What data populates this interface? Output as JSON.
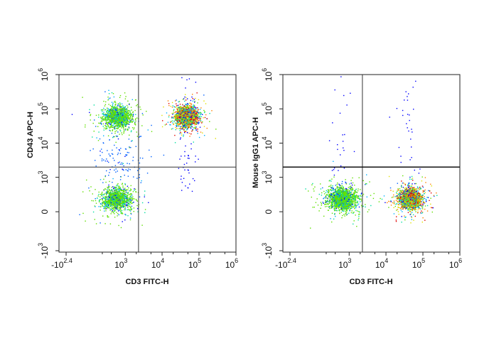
{
  "chart_data": [
    {
      "type": "scatter",
      "subtype": "flow-cytometry-density-dot-plot",
      "xlabel": "CD3 FITC-H",
      "ylabel": "CD43 APC-H",
      "x_scale": "biexponential",
      "y_scale": "biexponential",
      "x_ticks": [
        {
          "label": "-10",
          "exp": "2.4",
          "value": -251
        },
        {
          "label": "10",
          "exp": "3",
          "value": 1000
        },
        {
          "label": "10",
          "exp": "4",
          "value": 10000
        },
        {
          "label": "10",
          "exp": "5",
          "value": 100000
        },
        {
          "label": "10",
          "exp": "6",
          "value": 1000000
        }
      ],
      "y_ticks": [
        {
          "label": "-10",
          "exp": "3",
          "value": -1000
        },
        {
          "label": "0",
          "exp": "",
          "value": 0
        },
        {
          "label": "10",
          "exp": "3",
          "value": 1000
        },
        {
          "label": "10",
          "exp": "4",
          "value": 10000
        },
        {
          "label": "10",
          "exp": "5",
          "value": 100000
        },
        {
          "label": "10",
          "exp": "6",
          "value": 1000000
        }
      ],
      "quadrant_gate": {
        "x": 2300,
        "y": 2000
      },
      "populations": [
        {
          "name": "",
          "x_center": 600,
          "y_center": 60000,
          "count": 1400,
          "density": "high"
        },
        {
          "name": "",
          "x_center": 45000,
          "y_center": 60000,
          "count": 2600,
          "density": "very high"
        },
        {
          "name": "",
          "x_center": 550,
          "y_center": 200,
          "count": 1300,
          "density": "high"
        },
        {
          "name": "",
          "x_center": 700,
          "y_center": 4000,
          "count": 120,
          "density": "low"
        }
      ],
      "colors": [
        "#0000ff",
        "#00a0ff",
        "#00e0a0",
        "#60e000",
        "#e0e000",
        "#ff8000",
        "#e00000"
      ]
    },
    {
      "type": "scatter",
      "subtype": "flow-cytometry-density-dot-plot",
      "xlabel": "CD3 FITC-H",
      "ylabel": "Mouse IgG1 APC-H",
      "x_scale": "biexponential",
      "y_scale": "biexponential",
      "x_ticks": [
        {
          "label": "-10",
          "exp": "2.4",
          "value": -251
        },
        {
          "label": "10",
          "exp": "3",
          "value": 1000
        },
        {
          "label": "10",
          "exp": "4",
          "value": 10000
        },
        {
          "label": "10",
          "exp": "5",
          "value": 100000
        },
        {
          "label": "10",
          "exp": "6",
          "value": 1000000
        }
      ],
      "y_ticks": [
        {
          "label": "-10",
          "exp": "3",
          "value": -1000
        },
        {
          "label": "0",
          "exp": "",
          "value": 0
        },
        {
          "label": "10",
          "exp": "3",
          "value": 1000
        },
        {
          "label": "10",
          "exp": "4",
          "value": 10000
        },
        {
          "label": "10",
          "exp": "5",
          "value": 100000
        },
        {
          "label": "10",
          "exp": "6",
          "value": 1000000
        }
      ],
      "quadrant_gate": {
        "x": 2300,
        "y": 2000
      },
      "populations": [
        {
          "name": "",
          "x_center": 600,
          "y_center": 200,
          "count": 1800,
          "density": "high"
        },
        {
          "name": "",
          "x_center": 45000,
          "y_center": 200,
          "count": 2800,
          "density": "very high"
        }
      ],
      "colors": [
        "#0000ff",
        "#00a0ff",
        "#00e0a0",
        "#60e000",
        "#e0e000",
        "#ff8000",
        "#e00000"
      ]
    }
  ]
}
